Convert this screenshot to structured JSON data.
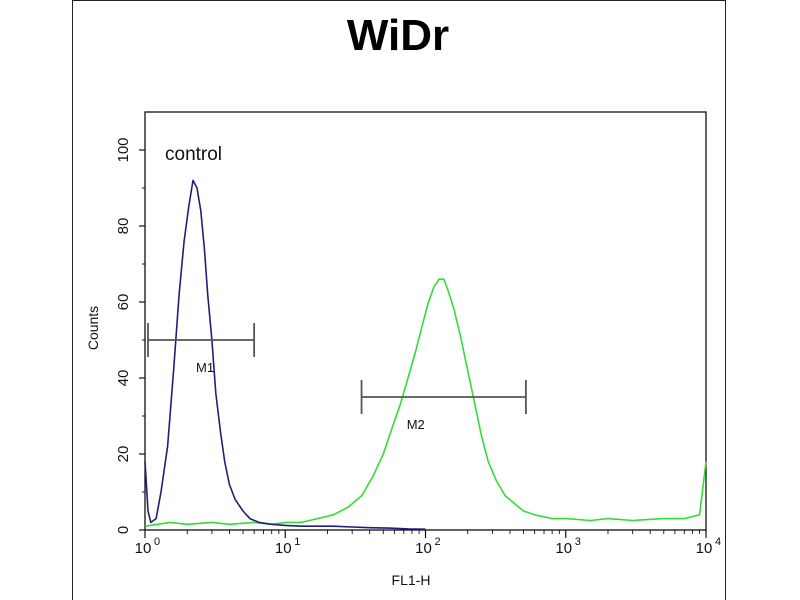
{
  "chart_data": {
    "type": "line",
    "title": "WiDr",
    "xlabel": "FL1-H",
    "ylabel": "Counts",
    "xscale": "log",
    "xlim": [
      1,
      10000
    ],
    "ylim": [
      0,
      110
    ],
    "x_ticks": [
      {
        "value": 1,
        "base": "10",
        "exp": "0"
      },
      {
        "value": 10,
        "base": "10",
        "exp": "1"
      },
      {
        "value": 100,
        "base": "10",
        "exp": "2"
      },
      {
        "value": 1000,
        "base": "10",
        "exp": "3"
      },
      {
        "value": 10000,
        "base": "10",
        "exp": "4"
      }
    ],
    "y_ticks": [
      0,
      20,
      40,
      60,
      80,
      100
    ],
    "annotation": "control",
    "series": [
      {
        "color": "#1f1f7a",
        "x": [
          1.0,
          1.05,
          1.1,
          1.2,
          1.3,
          1.45,
          1.6,
          1.75,
          1.9,
          2.05,
          2.2,
          2.35,
          2.5,
          2.65,
          2.8,
          3.0,
          3.2,
          3.45,
          3.7,
          4.0,
          4.4,
          5.0,
          5.6,
          6.5,
          8.0,
          10,
          13,
          17,
          22,
          30,
          40,
          55,
          75,
          100
        ],
        "y": [
          18,
          5,
          2,
          3,
          10,
          22,
          42,
          62,
          76,
          85,
          92,
          90,
          84,
          74,
          62,
          50,
          36,
          26,
          18,
          12,
          8,
          5,
          3,
          2,
          1.5,
          1.2,
          1,
          1,
          1,
          0.8,
          0.6,
          0.5,
          0.3,
          0.2
        ]
      },
      {
        "color": "#33dd33",
        "x": [
          1.0,
          1.5,
          2,
          3,
          4,
          6,
          8,
          10,
          13,
          17,
          22,
          28,
          35,
          42,
          50,
          58,
          66,
          75,
          85,
          95,
          105,
          115,
          125,
          135,
          145,
          160,
          180,
          200,
          225,
          250,
          280,
          320,
          370,
          430,
          500,
          600,
          800,
          1000,
          1500,
          2000,
          3000,
          5000,
          7000,
          9000,
          10000
        ],
        "y": [
          1,
          2,
          1.5,
          2,
          1.5,
          2,
          1.5,
          2,
          2,
          3,
          4,
          6,
          9,
          14,
          20,
          27,
          33,
          40,
          47,
          54,
          60,
          64,
          66,
          66,
          63,
          58,
          50,
          42,
          33,
          25,
          18,
          13,
          9,
          7,
          5,
          4,
          3,
          3,
          2.5,
          3,
          2.5,
          3,
          3,
          4,
          18
        ]
      }
    ],
    "markers": [
      {
        "label": "M1",
        "x_start": 1.05,
        "x_end": 6.0,
        "y": 50
      },
      {
        "label": "M2",
        "x_start": 35,
        "x_end": 520,
        "y": 35
      }
    ]
  }
}
